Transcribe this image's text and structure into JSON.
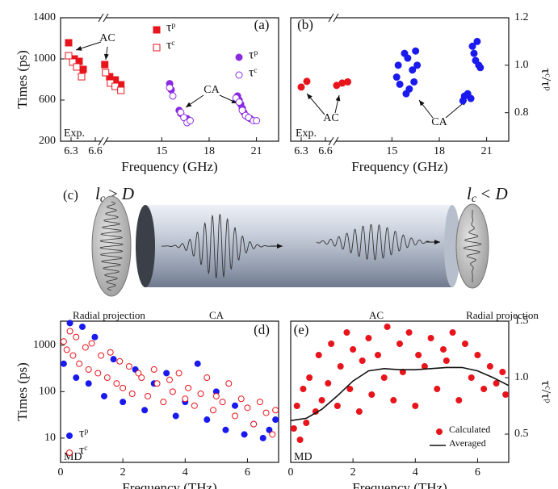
{
  "chart_data": [
    {
      "type": "scatter",
      "title": "(a)",
      "xlabel": "Frequency (GHz)",
      "ylabel": "Times (ps)",
      "annotations": [
        "AC",
        "CA",
        "Exp."
      ],
      "xlim": [
        6.17,
        22.4
      ],
      "xbreak": [
        6.7,
        11.3
      ],
      "xticks": [
        6.3,
        6.6,
        15,
        18,
        21
      ],
      "ylim": [
        200,
        1400
      ],
      "yticks": [
        200,
        600,
        1000,
        1400
      ],
      "series": [
        {
          "name": "τᵖ",
          "color": "#e8141c",
          "marker": "square",
          "filled": true,
          "x": [
            6.27,
            6.34,
            6.4,
            6.45,
            11.39,
            11.7,
            12.05,
            12.41
          ],
          "values": [
            1157,
            1000,
            976,
            898,
            945,
            827,
            796,
            749
          ]
        },
        {
          "name": "τᶜ",
          "color": "#e8141c",
          "marker": "square",
          "filled": false,
          "x": [
            6.27,
            6.32,
            6.37,
            6.43,
            11.44,
            11.75,
            12.05,
            12.41
          ],
          "values": [
            1031,
            969,
            922,
            827,
            867,
            765,
            733,
            694
          ]
        },
        {
          "name": "τᵖ",
          "color": "#8a2be2",
          "marker": "circle",
          "filled": true,
          "x": [
            15.5,
            15.6,
            16.1,
            16.2,
            16.6,
            19.8,
            19.9,
            20.0,
            20.1,
            20.2,
            20.4,
            20.6
          ],
          "values": [
            760,
            700,
            500,
            470,
            420,
            640,
            600,
            560,
            520,
            480,
            440,
            420
          ]
        },
        {
          "name": "τᶜ",
          "color": "#8a2be2",
          "marker": "circle",
          "filled": false,
          "x": [
            15.5,
            15.7,
            16.2,
            16.4,
            16.6,
            16.8,
            19.7,
            19.9,
            20.1,
            20.3,
            20.5,
            20.8,
            21.0
          ],
          "values": [
            720,
            640,
            480,
            430,
            380,
            400,
            620,
            580,
            500,
            450,
            430,
            400,
            400
          ]
        }
      ]
    },
    {
      "type": "scatter",
      "title": "(b)",
      "xlabel": "Frequency (GHz)",
      "ylabel": "τᶜ/τᵖ",
      "y_axis_side": "right",
      "annotations": [
        "Exp.",
        "AC",
        "CA"
      ],
      "xlim": [
        6.17,
        22.4
      ],
      "xbreak": [
        6.7,
        11.3
      ],
      "xticks": [
        6.3,
        6.6,
        15,
        18,
        21
      ],
      "ylim": [
        0.68,
        1.2
      ],
      "yticks": [
        0.8,
        {
          "value": 1,
          "label": "1.0"
        },
        1.2
      ],
      "series": [
        {
          "color": "#e8141c",
          "marker": "circle",
          "filled": true,
          "x": [
            6.3,
            6.37,
            11.5,
            11.85,
            12.2
          ],
          "values": [
            0.908,
            0.932,
            0.915,
            0.925,
            0.93
          ]
        },
        {
          "color": "#1a1aee",
          "marker": "circle",
          "filled": true,
          "x": [
            15.3,
            15.4,
            15.5,
            15.8,
            16.0,
            16.1,
            16.3,
            16.4,
            16.5,
            16.6,
            15.9,
            19.5,
            19.6,
            19.8,
            20.0,
            20.1,
            20.2,
            20.3,
            20.5,
            20.6,
            20.4
          ],
          "values": [
            0.95,
            1.0,
            0.92,
            1.05,
            1.03,
            0.9,
            0.98,
            0.93,
            1.06,
            1.0,
            0.88,
            0.85,
            0.87,
            0.88,
            0.86,
            1.08,
            1.05,
            1.02,
            1.0,
            0.99,
            1.1
          ]
        }
      ]
    },
    {
      "type": "scatter",
      "title": "(d)",
      "xlabel": "Frequency (THz)",
      "ylabel": "Times (ps)",
      "ylog": true,
      "legend": "lower left",
      "annotations": [
        "MD"
      ],
      "xlim": [
        0,
        7
      ],
      "xticks": [
        0,
        2,
        4,
        6
      ],
      "ylim": [
        3,
        3300
      ],
      "yticks": [
        10,
        100,
        1000
      ],
      "series": [
        {
          "name": "τᵖ",
          "color": "#1a1aee",
          "marker": "circle",
          "filled": true,
          "x": [
            0.1,
            0.3,
            0.5,
            0.7,
            0.9,
            1.1,
            1.4,
            1.7,
            2.0,
            2.4,
            2.7,
            3.0,
            3.4,
            3.7,
            4.0,
            4.4,
            4.7,
            5.0,
            5.3,
            5.6,
            5.9,
            6.2,
            6.5,
            6.7,
            6.9
          ],
          "values": [
            400,
            3000,
            200,
            2500,
            150,
            1500,
            80,
            500,
            60,
            300,
            40,
            150,
            250,
            30,
            60,
            400,
            25,
            100,
            15,
            50,
            12,
            20,
            10,
            15,
            25
          ]
        },
        {
          "name": "τᶜ",
          "color": "#e8141c",
          "marker": "circle",
          "filled": false,
          "x": [
            0.1,
            0.2,
            0.3,
            0.4,
            0.5,
            0.6,
            0.8,
            0.9,
            1.0,
            1.2,
            1.3,
            1.5,
            1.6,
            1.8,
            1.9,
            2.0,
            2.2,
            2.3,
            2.5,
            2.6,
            2.8,
            3.0,
            3.1,
            3.3,
            3.5,
            3.6,
            3.8,
            4.0,
            4.1,
            4.3,
            4.5,
            4.7,
            4.9,
            5.0,
            5.2,
            5.4,
            5.6,
            5.8,
            6.0,
            6.2,
            6.4,
            6.6,
            6.8,
            6.9
          ],
          "values": [
            1200,
            800,
            2000,
            600,
            1500,
            400,
            900,
            300,
            1100,
            250,
            600,
            200,
            700,
            150,
            450,
            120,
            350,
            90,
            250,
            200,
            80,
            300,
            150,
            60,
            180,
            100,
            250,
            70,
            120,
            50,
            90,
            200,
            40,
            80,
            60,
            150,
            30,
            70,
            45,
            20,
            60,
            35,
            12,
            40
          ]
        }
      ]
    },
    {
      "type": "scatter",
      "title": "(e)",
      "xlabel": "Frequency (THz)",
      "ylabel": "τᶜ/τᵖ",
      "y_axis_side": "right",
      "legend": "lower right",
      "annotations": [
        "MD"
      ],
      "xlim": [
        0,
        7
      ],
      "xticks": [
        0,
        2,
        4,
        6
      ],
      "ylim": [
        0.25,
        1.5
      ],
      "yticks": [
        0.5,
        {
          "value": 1,
          "label": "1.0"
        },
        1.5
      ],
      "series": [
        {
          "name": "Calculated",
          "color": "#e8141c",
          "marker": "circle",
          "filled": true,
          "x": [
            0.1,
            0.2,
            0.3,
            0.4,
            0.5,
            0.6,
            0.8,
            0.9,
            1.0,
            1.2,
            1.3,
            1.5,
            1.6,
            1.8,
            1.9,
            2.0,
            2.2,
            2.3,
            2.5,
            2.6,
            2.8,
            3.0,
            3.1,
            3.3,
            3.5,
            3.6,
            3.8,
            4.0,
            4.1,
            4.3,
            4.5,
            4.7,
            4.9,
            5.0,
            5.2,
            5.4,
            5.6,
            5.8,
            6.0,
            6.2,
            6.4,
            6.6,
            6.8,
            6.9
          ],
          "values": [
            0.55,
            0.75,
            0.45,
            0.9,
            0.6,
            1.0,
            0.7,
            1.2,
            0.8,
            0.95,
            1.3,
            0.75,
            1.1,
            1.4,
            0.9,
            1.25,
            0.7,
            1.15,
            1.35,
            0.85,
            1.2,
            1.0,
            1.45,
            0.8,
            1.3,
            1.05,
            1.4,
            0.75,
            1.2,
            1.1,
            1.35,
            0.9,
            1.25,
            1.15,
            1.4,
            0.8,
            1.3,
            1.0,
            1.2,
            0.9,
            1.1,
            0.95,
            1.05,
            0.85
          ]
        },
        {
          "name": "Averaged",
          "color": "#111111",
          "type": "line",
          "x": [
            0,
            0.5,
            1,
            1.5,
            2,
            2.5,
            3,
            3.5,
            4,
            4.5,
            5,
            5.5,
            6,
            6.5,
            7
          ],
          "values": [
            0.62,
            0.64,
            0.72,
            0.84,
            0.97,
            1.06,
            1.08,
            1.07,
            1.07,
            1.08,
            1.09,
            1.09,
            1.06,
            1.0,
            0.93
          ]
        }
      ]
    }
  ],
  "diagram": {
    "label": "(c)",
    "left_condition": {
      "symbol": "l",
      "subscript": "c",
      "relation": "≥ D"
    },
    "right_condition": {
      "symbol": "l",
      "subscript": "c",
      "relation": "< D"
    },
    "captions": [
      "Radial projection",
      "CA",
      "AC",
      "Radial projection"
    ]
  }
}
